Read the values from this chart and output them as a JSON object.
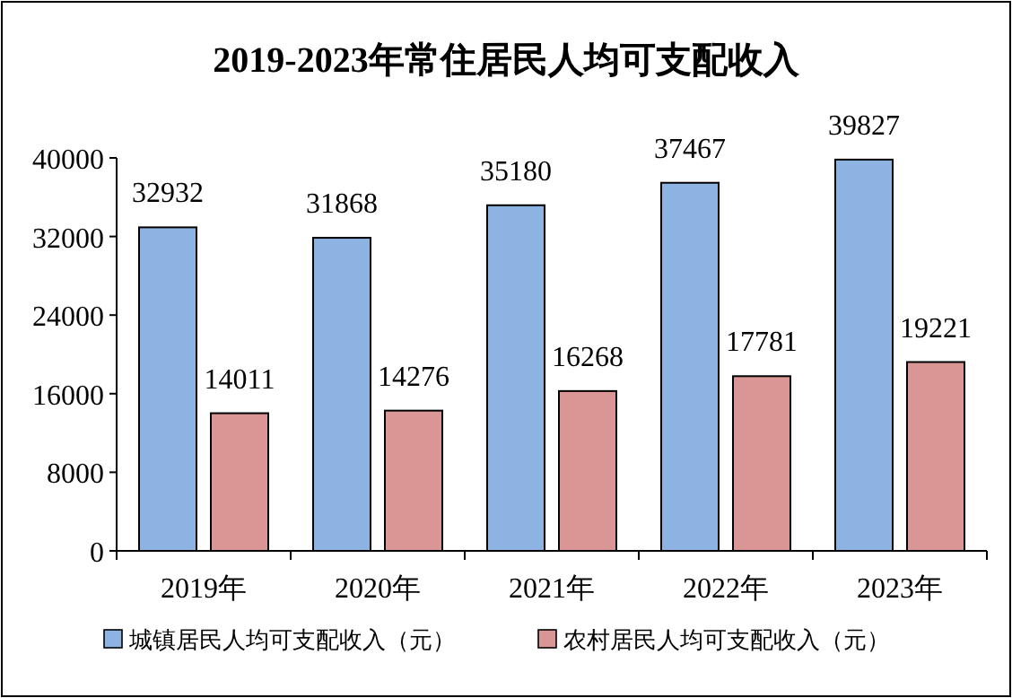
{
  "chart_data": {
    "type": "bar",
    "title": "2019-2023年常住居民人均可支配收入",
    "categories": [
      "2019年",
      "2020年",
      "2021年",
      "2022年",
      "2023年"
    ],
    "series": [
      {
        "name": "城镇居民人均可支配收入（元）",
        "color": "#8db3e2",
        "values": [
          32932,
          31868,
          35180,
          37467,
          39827
        ]
      },
      {
        "name": "农村居民人均可支配收入（元）",
        "color": "#d99694",
        "values": [
          14011,
          14276,
          16268,
          17781,
          19221
        ]
      }
    ],
    "ylim": [
      0,
      40000
    ],
    "yticks": [
      0,
      8000,
      16000,
      24000,
      32000,
      40000
    ],
    "data_labels": true,
    "legend": "bottom",
    "grid": false
  }
}
